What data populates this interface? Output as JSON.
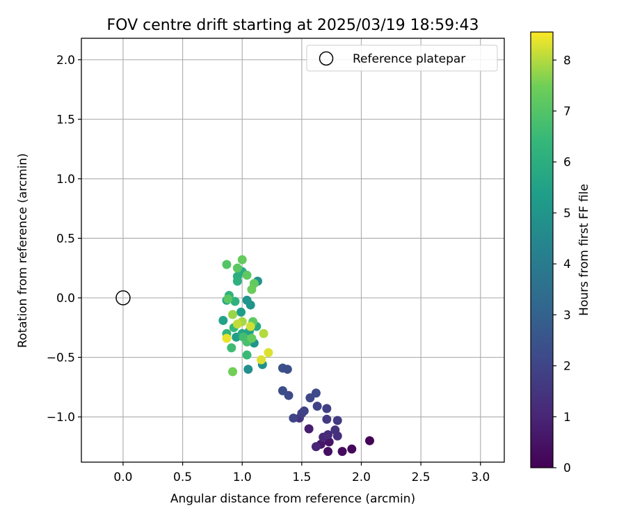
{
  "chart_data": {
    "type": "scatter",
    "title": "FOV centre drift starting at 2025/03/19 18:59:43",
    "xlabel": "Angular distance from reference (arcmin)",
    "ylabel": "Rotation from reference (arcmin)",
    "xlim": [
      -0.35,
      3.2
    ],
    "ylim": [
      -1.38,
      2.18
    ],
    "x_ticks": [
      0.0,
      0.5,
      1.0,
      1.5,
      2.0,
      2.5,
      3.0
    ],
    "x_tick_labels": [
      "0.0",
      "0.5",
      "1.0",
      "1.5",
      "2.0",
      "2.5",
      "3.0"
    ],
    "y_ticks": [
      2.0,
      1.5,
      1.0,
      0.5,
      0.0,
      -0.5,
      -1.0
    ],
    "y_tick_labels": [
      "2.0",
      "1.5",
      "1.0",
      "0.5",
      "0.0",
      "−0.5",
      "−1.0"
    ],
    "grid": true,
    "legend": {
      "position": "top-right",
      "entries": [
        {
          "label": "Reference platepar",
          "marker": "open-circle"
        }
      ]
    },
    "reference_point": {
      "x": 0.0,
      "y": 0.0
    },
    "colorbar": {
      "label": "Hours from first FF file",
      "colormap": "viridis",
      "range": [
        0,
        8.55
      ],
      "ticks": [
        0,
        1,
        2,
        3,
        4,
        5,
        6,
        7,
        8
      ],
      "tick_labels": [
        "0",
        "1",
        "2",
        "3",
        "4",
        "5",
        "6",
        "7",
        "8"
      ]
    },
    "points": [
      {
        "x": 2.07,
        "y": -1.2,
        "h": 0.1
      },
      {
        "x": 1.92,
        "y": -1.27,
        "h": 0.2
      },
      {
        "x": 1.84,
        "y": -1.29,
        "h": 0.3
      },
      {
        "x": 1.72,
        "y": -1.29,
        "h": 0.4
      },
      {
        "x": 1.73,
        "y": -1.21,
        "h": 0.5
      },
      {
        "x": 1.66,
        "y": -1.23,
        "h": 0.6
      },
      {
        "x": 1.56,
        "y": -1.1,
        "h": 0.8
      },
      {
        "x": 1.62,
        "y": -1.25,
        "h": 1.0
      },
      {
        "x": 1.68,
        "y": -1.17,
        "h": 1.1
      },
      {
        "x": 1.72,
        "y": -1.15,
        "h": 1.2
      },
      {
        "x": 1.8,
        "y": -1.16,
        "h": 1.3
      },
      {
        "x": 1.78,
        "y": -1.11,
        "h": 1.4
      },
      {
        "x": 1.48,
        "y": -1.01,
        "h": 1.5
      },
      {
        "x": 1.71,
        "y": -1.02,
        "h": 1.7
      },
      {
        "x": 1.8,
        "y": -1.03,
        "h": 1.7
      },
      {
        "x": 1.5,
        "y": -0.97,
        "h": 1.8
      },
      {
        "x": 1.52,
        "y": -0.95,
        "h": 1.9
      },
      {
        "x": 1.43,
        "y": -1.01,
        "h": 2.0
      },
      {
        "x": 1.63,
        "y": -0.91,
        "h": 1.9
      },
      {
        "x": 1.71,
        "y": -0.93,
        "h": 1.8
      },
      {
        "x": 1.57,
        "y": -0.84,
        "h": 2.1
      },
      {
        "x": 1.62,
        "y": -0.8,
        "h": 2.2
      },
      {
        "x": 1.34,
        "y": -0.78,
        "h": 2.3
      },
      {
        "x": 1.39,
        "y": -0.82,
        "h": 2.2
      },
      {
        "x": 1.34,
        "y": -0.59,
        "h": 2.4
      },
      {
        "x": 1.38,
        "y": -0.6,
        "h": 2.3
      },
      {
        "x": 1.05,
        "y": -0.6,
        "h": 4.8
      },
      {
        "x": 1.17,
        "y": -0.56,
        "h": 4.8
      },
      {
        "x": 1.13,
        "y": 0.14,
        "h": 4.9
      },
      {
        "x": 1.04,
        "y": -0.02,
        "h": 5.0
      },
      {
        "x": 1.07,
        "y": -0.06,
        "h": 5.0
      },
      {
        "x": 1.1,
        "y": -0.38,
        "h": 5.0
      },
      {
        "x": 0.99,
        "y": -0.12,
        "h": 5.3
      },
      {
        "x": 0.95,
        "y": -0.33,
        "h": 5.4
      },
      {
        "x": 0.84,
        "y": -0.19,
        "h": 5.5
      },
      {
        "x": 0.87,
        "y": -0.02,
        "h": 5.6
      },
      {
        "x": 1.0,
        "y": -0.3,
        "h": 5.7
      },
      {
        "x": 1.06,
        "y": -0.28,
        "h": 5.6
      },
      {
        "x": 1.12,
        "y": -0.24,
        "h": 5.8
      },
      {
        "x": 1.0,
        "y": 0.22,
        "h": 5.9
      },
      {
        "x": 0.96,
        "y": 0.18,
        "h": 6.0
      },
      {
        "x": 0.96,
        "y": 0.14,
        "h": 6.1
      },
      {
        "x": 0.89,
        "y": 0.02,
        "h": 6.2
      },
      {
        "x": 0.94,
        "y": -0.03,
        "h": 6.2
      },
      {
        "x": 0.87,
        "y": -0.3,
        "h": 6.3
      },
      {
        "x": 0.93,
        "y": -0.25,
        "h": 6.4
      },
      {
        "x": 1.04,
        "y": -0.48,
        "h": 6.5
      },
      {
        "x": 0.91,
        "y": -0.42,
        "h": 6.6
      },
      {
        "x": 1.01,
        "y": -0.33,
        "h": 6.7
      },
      {
        "x": 1.04,
        "y": -0.37,
        "h": 6.8
      },
      {
        "x": 0.87,
        "y": 0.28,
        "h": 7.0
      },
      {
        "x": 0.96,
        "y": 0.25,
        "h": 7.1
      },
      {
        "x": 1.04,
        "y": 0.19,
        "h": 7.2
      },
      {
        "x": 1.0,
        "y": 0.32,
        "h": 7.3
      },
      {
        "x": 1.1,
        "y": 0.12,
        "h": 7.3
      },
      {
        "x": 1.08,
        "y": 0.07,
        "h": 7.4
      },
      {
        "x": 0.88,
        "y": -0.01,
        "h": 7.1
      },
      {
        "x": 1.09,
        "y": -0.2,
        "h": 7.2
      },
      {
        "x": 1.08,
        "y": -0.34,
        "h": 7.3
      },
      {
        "x": 0.92,
        "y": -0.62,
        "h": 7.5
      },
      {
        "x": 0.92,
        "y": -0.14,
        "h": 7.8
      },
      {
        "x": 1.0,
        "y": -0.2,
        "h": 7.9
      },
      {
        "x": 1.18,
        "y": -0.3,
        "h": 8.0
      },
      {
        "x": 0.96,
        "y": -0.22,
        "h": 8.1
      },
      {
        "x": 1.07,
        "y": -0.24,
        "h": 8.2
      },
      {
        "x": 1.16,
        "y": -0.52,
        "h": 8.3
      },
      {
        "x": 1.22,
        "y": -0.46,
        "h": 8.3
      },
      {
        "x": 0.87,
        "y": -0.34,
        "h": 8.4
      }
    ]
  }
}
